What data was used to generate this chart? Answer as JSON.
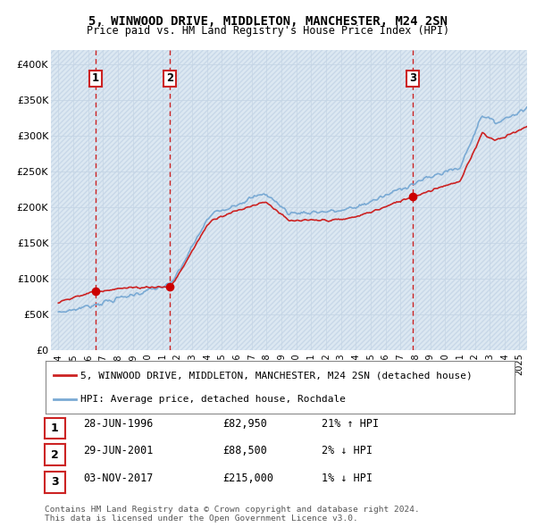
{
  "title": "5, WINWOOD DRIVE, MIDDLETON, MANCHESTER, M24 2SN",
  "subtitle": "Price paid vs. HM Land Registry's House Price Index (HPI)",
  "property_label": "5, WINWOOD DRIVE, MIDDLETON, MANCHESTER, M24 2SN (detached house)",
  "hpi_label": "HPI: Average price, detached house, Rochdale",
  "footer": "Contains HM Land Registry data © Crown copyright and database right 2024.\nThis data is licensed under the Open Government Licence v3.0.",
  "sales": [
    {
      "num": 1,
      "date_str": "28-JUN-1996",
      "date_x": 1996.49,
      "price": 82950,
      "pct": "21%",
      "direction": "↑"
    },
    {
      "num": 2,
      "date_str": "29-JUN-2001",
      "date_x": 2001.49,
      "price": 88500,
      "pct": "2%",
      "direction": "↓"
    },
    {
      "num": 3,
      "date_str": "03-NOV-2017",
      "date_x": 2017.84,
      "price": 215000,
      "pct": "1%",
      "direction": "↓"
    }
  ],
  "ylim": [
    0,
    420000
  ],
  "xlim": [
    1993.5,
    2025.5
  ],
  "yticks": [
    0,
    50000,
    100000,
    150000,
    200000,
    250000,
    300000,
    350000,
    400000
  ],
  "ytick_labels": [
    "£0",
    "£50K",
    "£100K",
    "£150K",
    "£200K",
    "£250K",
    "£300K",
    "£350K",
    "£400K"
  ],
  "xticks": [
    1994,
    1995,
    1996,
    1997,
    1998,
    1999,
    2000,
    2001,
    2002,
    2003,
    2004,
    2005,
    2006,
    2007,
    2008,
    2009,
    2010,
    2011,
    2012,
    2013,
    2014,
    2015,
    2016,
    2017,
    2018,
    2019,
    2020,
    2021,
    2022,
    2023,
    2024,
    2025
  ],
  "hpi_color": "#7aaad4",
  "sale_color": "#cc2222",
  "grid_color": "#c5d5e5",
  "sale_dot_color": "#cc0000",
  "vline_color": "#cc2222",
  "box_border_color": "#cc2222",
  "bg_color": "#dce8f2",
  "hatch_color": "#c8d8e8"
}
